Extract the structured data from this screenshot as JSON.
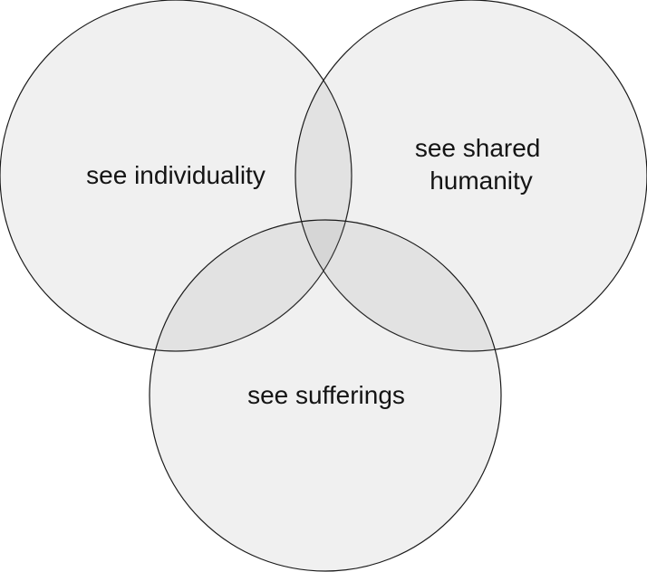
{
  "diagram": {
    "type": "venn",
    "sets": [
      {
        "id": "left",
        "label_lines": [
          "see individuality"
        ]
      },
      {
        "id": "right",
        "label_lines": [
          "see shared",
          "humanity"
        ]
      },
      {
        "id": "bottom",
        "label_lines": [
          "see sufferings"
        ]
      }
    ],
    "colors": {
      "circle_fill": "#808080",
      "circle_stroke": "#1a1a1a",
      "text": "#141414",
      "background": "#ffffff"
    }
  }
}
